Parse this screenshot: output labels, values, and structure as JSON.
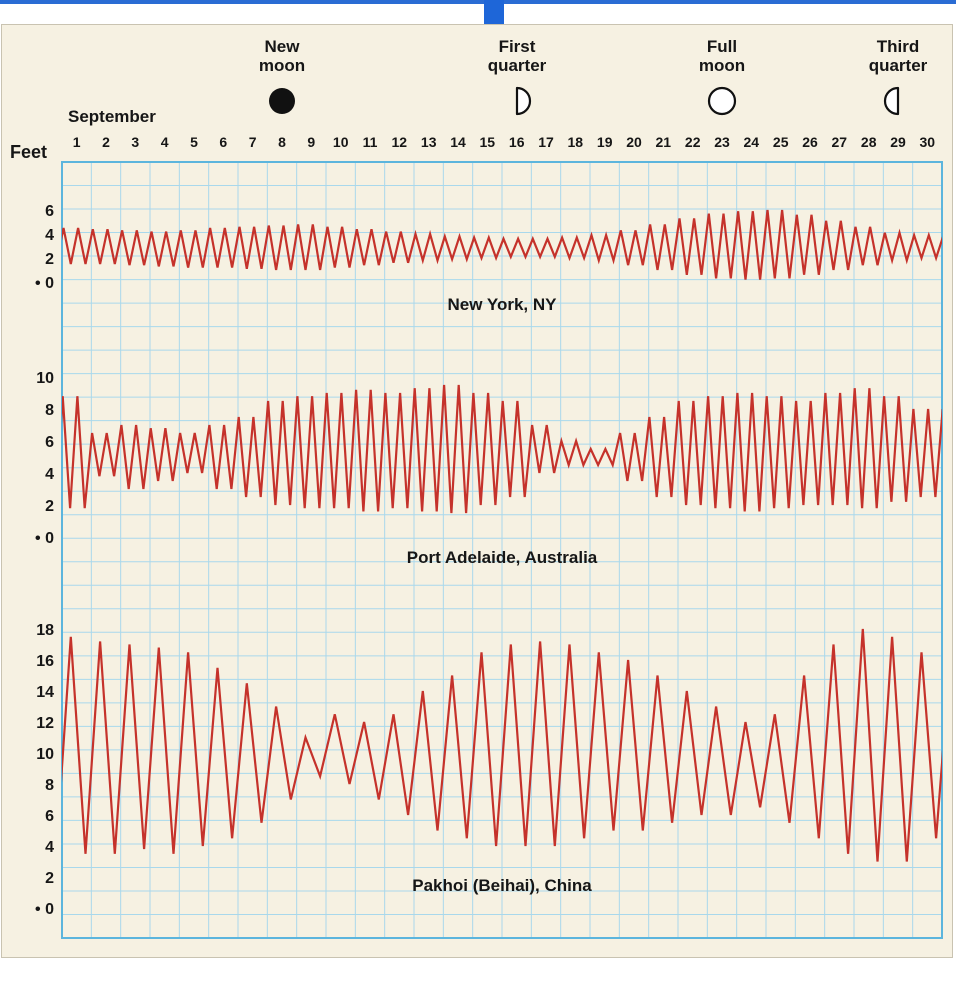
{
  "figure": {
    "month_label": "September",
    "y_axis_label": "Feet",
    "day_labels": [
      "1",
      "2",
      "3",
      "4",
      "5",
      "6",
      "7",
      "8",
      "9",
      "10",
      "11",
      "12",
      "13",
      "14",
      "15",
      "16",
      "17",
      "18",
      "19",
      "20",
      "21",
      "22",
      "23",
      "24",
      "25",
      "26",
      "27",
      "28",
      "29",
      "30"
    ],
    "moon_phases": [
      {
        "name": "New moon",
        "symbol": "new-moon",
        "day": 8
      },
      {
        "name": "First quarter",
        "symbol": "first-quarter",
        "day": 16
      },
      {
        "name": "Full moon",
        "symbol": "full-moon",
        "day": 23
      },
      {
        "name": "Third quarter",
        "symbol": "third-quarter",
        "day": 29
      }
    ],
    "colors": {
      "curve": "#c5322b",
      "grid": "#a9d8ec",
      "plot_border": "#5cb5dd",
      "background": "#f6f1e2",
      "top_rule": "#2a6cd4",
      "top_marker": "#1e66d8",
      "moon_fill_dark": "#111111"
    }
  },
  "chart_data": [
    {
      "type": "line",
      "title": "New York, NY",
      "tide_pattern": "semidiurnal",
      "units": "feet",
      "xlabel": "September, days 1-30",
      "ylabel": "Feet",
      "ylim": [
        0,
        7
      ],
      "cycles_per_day": 2,
      "phase": 0.1,
      "daily_high": [
        4.5,
        4.4,
        4.3,
        4.2,
        4.3,
        4.5,
        4.6,
        4.7,
        4.8,
        4.6,
        4.4,
        4.2,
        4.0,
        3.8,
        3.7,
        3.6,
        3.6,
        3.7,
        3.9,
        4.3,
        4.8,
        5.3,
        5.7,
        5.9,
        6.0,
        5.6,
        5.1,
        4.6,
        4.1,
        3.9
      ],
      "daily_low": [
        1.5,
        1.5,
        1.4,
        1.3,
        1.2,
        1.2,
        1.1,
        1.0,
        1.0,
        1.2,
        1.4,
        1.6,
        1.8,
        1.9,
        2.0,
        2.1,
        2.1,
        2.0,
        1.8,
        1.4,
        1.0,
        0.6,
        0.3,
        0.2,
        0.3,
        0.6,
        1.0,
        1.4,
        1.8,
        2.0
      ],
      "y_ticks": [
        {
          "label": "6",
          "value": 6
        },
        {
          "label": "4",
          "value": 4
        },
        {
          "label": "2",
          "value": 2
        },
        {
          "label": "• 0",
          "value": 0
        }
      ]
    },
    {
      "type": "line",
      "title": "Port Adelaide, Australia",
      "tide_pattern": "semidiurnal",
      "units": "feet",
      "xlabel": "September, days 1-30",
      "ylabel": "Feet",
      "ylim": [
        0,
        11
      ],
      "cycles_per_day": 2,
      "phase": 0.05,
      "daily_high": [
        8.8,
        6.5,
        7.0,
        6.8,
        6.5,
        7.0,
        7.5,
        8.5,
        8.8,
        9.0,
        9.2,
        9.0,
        9.3,
        9.5,
        9.0,
        8.5,
        7.0,
        6.0,
        5.5,
        6.5,
        7.5,
        8.5,
        8.8,
        9.0,
        8.8,
        8.5,
        9.0,
        9.3,
        8.8,
        8.0
      ],
      "daily_low": [
        1.8,
        3.8,
        3.0,
        3.5,
        4.0,
        3.0,
        2.5,
        2.0,
        1.8,
        1.8,
        1.6,
        1.8,
        1.6,
        1.5,
        2.0,
        2.5,
        4.0,
        4.5,
        4.5,
        3.5,
        2.5,
        2.0,
        1.8,
        1.6,
        1.8,
        2.0,
        2.0,
        1.8,
        2.2,
        2.5
      ],
      "y_ticks": [
        {
          "label": "10",
          "value": 10
        },
        {
          "label": "8",
          "value": 8
        },
        {
          "label": "6",
          "value": 6
        },
        {
          "label": "4",
          "value": 4
        },
        {
          "label": "2",
          "value": 2
        },
        {
          "label": "• 0",
          "value": 0
        }
      ]
    },
    {
      "type": "line",
      "title": "Pakhoi (Beihai), China",
      "tide_pattern": "diurnal",
      "units": "feet",
      "xlabel": "September, days 1-30",
      "ylabel": "Feet",
      "ylim": [
        0,
        19
      ],
      "cycles_per_day": 1,
      "phase": 0.3,
      "daily_high": [
        17.5,
        17.2,
        17.0,
        16.8,
        16.5,
        15.5,
        14.5,
        13.0,
        11.0,
        12.5,
        12.0,
        12.5,
        14.0,
        15.0,
        16.5,
        17.0,
        17.2,
        17.0,
        16.5,
        16.0,
        15.0,
        14.0,
        13.0,
        12.0,
        12.5,
        15.0,
        17.0,
        18.0,
        17.5,
        16.5
      ],
      "daily_low": [
        3.5,
        3.5,
        3.8,
        3.5,
        4.0,
        4.5,
        5.5,
        7.0,
        8.5,
        8.0,
        7.0,
        6.0,
        5.0,
        4.5,
        4.0,
        4.0,
        4.0,
        4.5,
        5.0,
        5.0,
        5.5,
        6.0,
        6.0,
        6.5,
        5.5,
        4.5,
        3.5,
        3.0,
        3.0,
        4.5
      ],
      "y_ticks": [
        {
          "label": "18",
          "value": 18
        },
        {
          "label": "16",
          "value": 16
        },
        {
          "label": "14",
          "value": 14
        },
        {
          "label": "12",
          "value": 12
        },
        {
          "label": "10",
          "value": 10
        },
        {
          "label": "8",
          "value": 8
        },
        {
          "label": "6",
          "value": 6
        },
        {
          "label": "4",
          "value": 4
        },
        {
          "label": "2",
          "value": 2
        },
        {
          "label": "• 0",
          "value": 0
        }
      ]
    }
  ]
}
